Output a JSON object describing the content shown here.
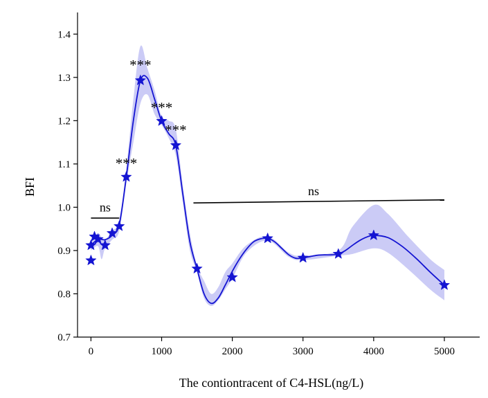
{
  "chart_data": {
    "type": "line",
    "xlabel": "The contiontracent of C4-HSL(ng/L)",
    "ylabel": "BFI",
    "xlim": [
      -190,
      5500
    ],
    "ylim": [
      0.7,
      1.45
    ],
    "x_ticks": [
      0,
      1000,
      2000,
      3000,
      4000,
      5000
    ],
    "x_tick_labels": [
      "0",
      "1000",
      "2000",
      "3000",
      "4000",
      "5000"
    ],
    "y_ticks": [
      0.7,
      0.8,
      0.9,
      1.0,
      1.1,
      1.2,
      1.3,
      1.4
    ],
    "y_tick_labels": [
      "0.7",
      "0.8",
      "0.9",
      "1.0",
      "1.1",
      "1.2",
      "1.3",
      "1.4"
    ],
    "series": [
      {
        "color": "#1414d2",
        "marker": "star",
        "x": [
          0,
          0,
          50,
          100,
          200,
          300,
          400,
          500,
          700,
          1000,
          1200,
          1500,
          2000,
          2500,
          3000,
          3500,
          4000,
          5000
        ],
        "y": [
          0.877,
          0.912,
          0.932,
          0.926,
          0.912,
          0.94,
          0.956,
          1.07,
          1.293,
          1.199,
          1.143,
          0.858,
          0.838,
          0.928,
          0.883,
          0.892,
          0.935,
          0.82
        ]
      }
    ],
    "fitted_curve": {
      "color": "#1414d2",
      "x": [
        0,
        100,
        200,
        300,
        400,
        500,
        600,
        700,
        800,
        900,
        1000,
        1100,
        1200,
        1300,
        1400,
        1500,
        1600,
        1700,
        1800,
        1900,
        2000,
        2100,
        2200,
        2300,
        2400,
        2500,
        2600,
        2700,
        2800,
        2900,
        3000,
        3100,
        3200,
        3300,
        3400,
        3500,
        3600,
        3700,
        3800,
        3900,
        4000,
        4200,
        4400,
        4600,
        4800,
        5000
      ],
      "y": [
        0.912,
        0.926,
        0.925,
        0.935,
        0.96,
        1.07,
        1.2,
        1.293,
        1.298,
        1.25,
        1.199,
        1.17,
        1.143,
        1.03,
        0.92,
        0.858,
        0.8,
        0.778,
        0.79,
        0.82,
        0.852,
        0.88,
        0.903,
        0.92,
        0.927,
        0.928,
        0.92,
        0.905,
        0.89,
        0.882,
        0.883,
        0.886,
        0.889,
        0.89,
        0.89,
        0.892,
        0.9,
        0.912,
        0.923,
        0.931,
        0.935,
        0.93,
        0.91,
        0.882,
        0.85,
        0.82
      ]
    },
    "confidence_band": {
      "color": "#c8c8f5",
      "x": [
        0,
        100,
        150,
        200,
        300,
        400,
        500,
        600,
        700,
        800,
        900,
        1000,
        1100,
        1200,
        1300,
        1400,
        1500,
        1600,
        1700,
        1800,
        1900,
        2000,
        2200,
        2500,
        2800,
        3000,
        3500,
        3700,
        4000,
        4200,
        4500,
        4800,
        5000
      ],
      "lower": [
        0.9,
        0.91,
        0.88,
        0.905,
        0.925,
        0.945,
        1.055,
        1.15,
        1.24,
        1.26,
        1.215,
        1.19,
        1.16,
        1.12,
        1.01,
        0.9,
        0.85,
        0.79,
        0.772,
        0.785,
        0.81,
        0.835,
        0.895,
        0.923,
        0.885,
        0.878,
        0.888,
        0.892,
        0.905,
        0.895,
        0.855,
        0.81,
        0.785
      ],
      "upper": [
        0.925,
        0.94,
        0.93,
        0.925,
        0.945,
        0.97,
        1.09,
        1.25,
        1.372,
        1.32,
        1.27,
        1.21,
        1.2,
        1.18,
        1.05,
        0.94,
        0.866,
        0.83,
        0.8,
        0.815,
        0.85,
        0.87,
        0.912,
        0.933,
        0.895,
        0.888,
        0.9,
        0.955,
        1.005,
        0.985,
        0.93,
        0.88,
        0.855
      ]
    },
    "annotations": [
      {
        "text": "***",
        "x": 700,
        "y": 1.333
      },
      {
        "text": "***",
        "x": 1000,
        "y": 1.235
      },
      {
        "text": "***",
        "x": 1200,
        "y": 1.183
      },
      {
        "text": "***",
        "x": 500,
        "y": 1.106
      },
      {
        "text": "ns",
        "x": 200,
        "y": 0.99
      },
      {
        "text": "ns",
        "x": 3150,
        "y": 1.028
      }
    ],
    "ns_lines": [
      {
        "x1": 0,
        "x2": 400,
        "y": 0.975
      },
      {
        "x1": 1450,
        "x2": 5000,
        "y1": 1.01,
        "y2": 1.017
      }
    ]
  }
}
